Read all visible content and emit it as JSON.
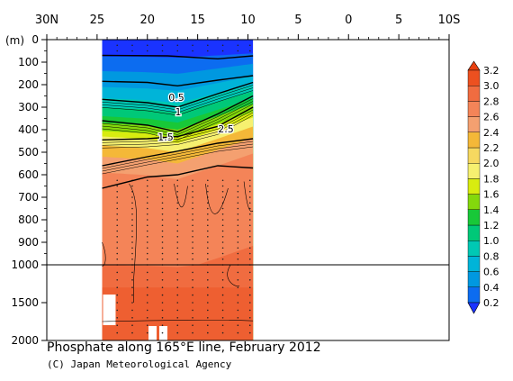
{
  "chart_data": {
    "type": "heatmap",
    "title": "Phosphate along 165°E line, February 2012",
    "credit": "(C) Japan Meteorological Agency",
    "x_axis": {
      "tick_labels": [
        "30N",
        "25",
        "20",
        "15",
        "10",
        "5",
        "0",
        "5",
        "10S"
      ],
      "tick_values": [
        30,
        25,
        20,
        15,
        10,
        5,
        0,
        -5,
        -10
      ],
      "range": [
        30,
        -10
      ],
      "data_coverage": [
        24.5,
        9.5
      ]
    },
    "y_axis": {
      "unit_label": "(m)",
      "upper_tick_labels": [
        "0",
        "100",
        "200",
        "300",
        "400",
        "500",
        "600",
        "700",
        "800",
        "900",
        "1000"
      ],
      "lower_tick_labels": [
        "1500",
        "2000"
      ],
      "range": [
        0,
        2000
      ],
      "scale_break_at": 1000
    },
    "colorbar": {
      "labels": [
        "0.2",
        "0.4",
        "0.6",
        "0.8",
        "1.0",
        "1.2",
        "1.4",
        "1.6",
        "1.8",
        "2.0",
        "2.2",
        "2.4",
        "2.6",
        "2.8",
        "3.0",
        "3.2"
      ],
      "colors": [
        "#1a33ff",
        "#0c6cf0",
        "#0098e0",
        "#00b4d8",
        "#00c8b4",
        "#00c878",
        "#18c838",
        "#84d80c",
        "#d8ec10",
        "#f6f070",
        "#f6d860",
        "#f4b838",
        "#f4a070",
        "#f48458",
        "#f06c40",
        "#ec5020",
        "#e84010"
      ]
    },
    "contour_labels": [
      "0.5",
      "1",
      "1.5",
      "2.5"
    ],
    "isolines_upper": [
      {
        "value": 0.2,
        "points": [
          [
            24.5,
            70
          ],
          [
            18,
            72
          ],
          [
            13,
            85
          ],
          [
            9.5,
            72
          ]
        ]
      },
      {
        "value": 0.5,
        "points": [
          [
            24.5,
            185
          ],
          [
            20,
            190
          ],
          [
            17,
            205
          ],
          [
            13,
            180
          ],
          [
            9.5,
            160
          ]
        ]
      },
      {
        "value": 1.0,
        "points": [
          [
            24.5,
            265
          ],
          [
            20,
            280
          ],
          [
            17,
            300
          ],
          [
            13,
            240
          ],
          [
            9.5,
            190
          ]
        ]
      },
      {
        "value": 1.5,
        "points": [
          [
            24.5,
            360
          ],
          [
            20,
            380
          ],
          [
            17,
            410
          ],
          [
            13,
            330
          ],
          [
            9.5,
            250
          ]
        ]
      },
      {
        "value": 2.0,
        "points": [
          [
            24.5,
            445
          ],
          [
            20,
            440
          ],
          [
            17,
            430
          ],
          [
            13,
            385
          ],
          [
            9.5,
            300
          ]
        ]
      },
      {
        "value": 2.5,
        "points": [
          [
            24.5,
            560
          ],
          [
            20,
            520
          ],
          [
            17,
            495
          ],
          [
            13,
            460
          ],
          [
            9.5,
            440
          ]
        ]
      },
      {
        "value": 2.8,
        "points": [
          [
            24.5,
            660
          ],
          [
            20,
            610
          ],
          [
            17,
            600
          ],
          [
            13,
            560
          ],
          [
            9.5,
            570
          ]
        ]
      }
    ]
  }
}
